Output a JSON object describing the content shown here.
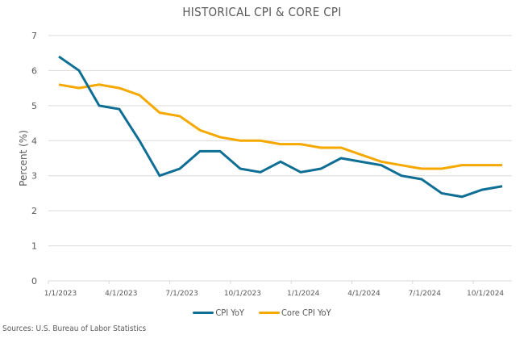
{
  "chart_data": {
    "type": "line",
    "title": "HISTORICAL CPI & CORE CPI",
    "xlabel": "",
    "ylabel": "Percent (%)",
    "ylim": [
      0,
      7
    ],
    "yticks": [
      0,
      1,
      2,
      3,
      4,
      5,
      6,
      7
    ],
    "grid": true,
    "legend_position": "bottom",
    "x": [
      "2023-01",
      "2023-02",
      "2023-03",
      "2023-04",
      "2023-05",
      "2023-06",
      "2023-07",
      "2023-08",
      "2023-09",
      "2023-10",
      "2023-11",
      "2023-12",
      "2024-01",
      "2024-02",
      "2024-03",
      "2024-04",
      "2024-05",
      "2024-06",
      "2024-07",
      "2024-08",
      "2024-09",
      "2024-10",
      "2024-11"
    ],
    "xtick_labels": [
      {
        "label": "1/1/2023",
        "index": 0
      },
      {
        "label": "4/1/2023",
        "index": 3
      },
      {
        "label": "7/1/2023",
        "index": 6
      },
      {
        "label": "10/1/2023",
        "index": 9
      },
      {
        "label": "1/1/2024",
        "index": 12
      },
      {
        "label": "4/1/2024",
        "index": 15
      },
      {
        "label": "7/1/2024",
        "index": 18
      },
      {
        "label": "10/1/2024",
        "index": 21
      }
    ],
    "series": [
      {
        "name": "CPI YoY",
        "color": "#0e6e94",
        "values": [
          6.4,
          6.0,
          5.0,
          4.9,
          4.0,
          3.0,
          3.2,
          3.7,
          3.7,
          3.2,
          3.1,
          3.4,
          3.1,
          3.2,
          3.5,
          3.4,
          3.3,
          3.0,
          2.9,
          2.5,
          2.4,
          2.6,
          2.7
        ]
      },
      {
        "name": "Core CPI YoY",
        "color": "#f5a800",
        "values": [
          5.6,
          5.5,
          5.6,
          5.5,
          5.3,
          4.8,
          4.7,
          4.3,
          4.1,
          4.0,
          4.0,
          3.9,
          3.9,
          3.8,
          3.8,
          3.6,
          3.4,
          3.3,
          3.2,
          3.2,
          3.3,
          3.3,
          3.3
        ]
      }
    ],
    "source": "Sources: U.S. Bureau of Labor Statistics"
  }
}
